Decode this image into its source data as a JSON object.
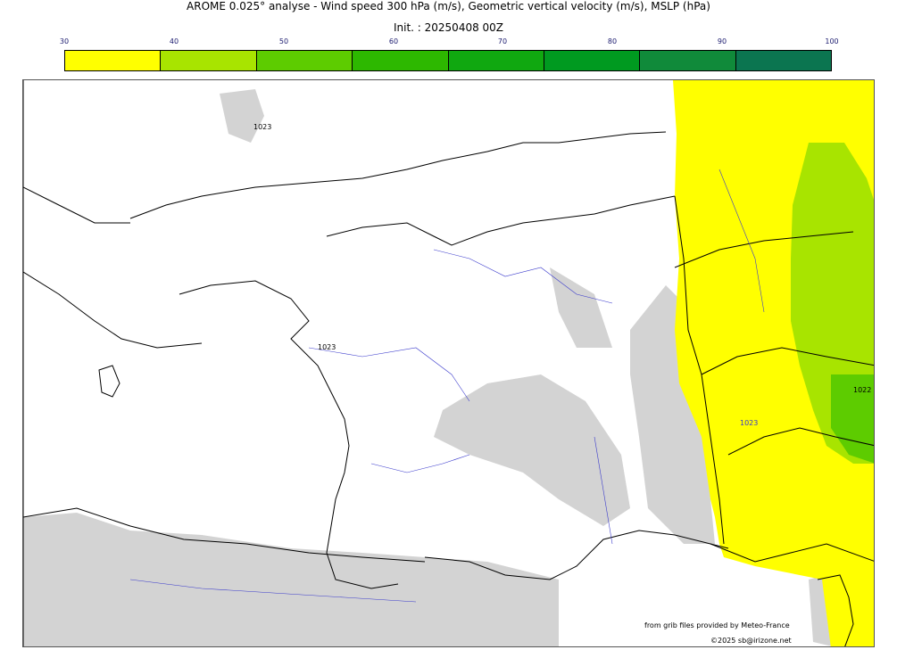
{
  "header": {
    "title": "AROME 0.025° analyse - Wind speed 300 hPa (m/s), Geometric vertical velocity (m/s), MSLP (hPa)",
    "init": "Init. : 20250408 00Z"
  },
  "colorbar": {
    "ticks": [
      "30",
      "40",
      "50",
      "60",
      "70",
      "80",
      "90",
      "100"
    ],
    "colors": [
      "#ffff00",
      "#a8e400",
      "#5dcc00",
      "#2db800",
      "#10a810",
      "#009a20",
      "#108a3a",
      "#0b7550"
    ]
  },
  "map": {
    "isobar_labels": [
      "1023",
      "1023",
      "1023",
      "1022"
    ],
    "colors": {
      "wind_30_40": "#ffff00",
      "wind_40_50": "#a8e400",
      "wind_50_60": "#5dcc00",
      "vertical_velocity": "#d3d3d3",
      "coastline": "#000000",
      "rivers": "#3a3acc"
    }
  },
  "credits": {
    "source": "from grib files provided by Meteo-France",
    "copyright": "©2025 sb@irizone.net"
  }
}
